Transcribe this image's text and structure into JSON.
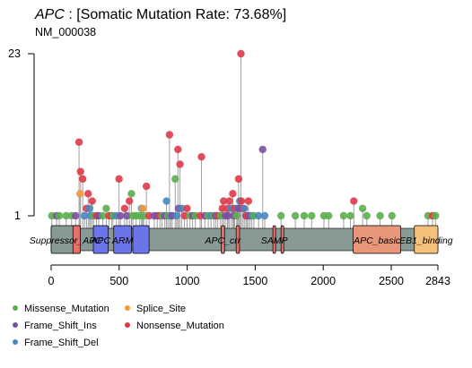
{
  "title": {
    "gene": "APC",
    "rest": " : [Somatic Mutation Rate: 73.68%]"
  },
  "subtitle": "NM_000038",
  "colors": {
    "Missense_Mutation": "#5cae4e",
    "Frame_Shift_Ins": "#7b4fa3",
    "Frame_Shift_Del": "#4a86c0",
    "Splice_Site": "#f39a3a",
    "Nonsense_Mutation": "#df3a4a",
    "backbone": "#889a96",
    "stem": "#a0a0a0"
  },
  "legend": [
    {
      "label": "Missense_Mutation",
      "type": "Missense_Mutation"
    },
    {
      "label": "Splice_Site",
      "type": "Splice_Site"
    },
    {
      "label": "Frame_Shift_Ins",
      "type": "Frame_Shift_Ins"
    },
    {
      "label": "Nonsense_Mutation",
      "type": "Nonsense_Mutation"
    },
    {
      "label": "Frame_Shift_Del",
      "type": "Frame_Shift_Del"
    }
  ],
  "chart_data": {
    "type": "lollipop",
    "protein_length": 2843,
    "xlim": [
      0,
      2843
    ],
    "x_ticks": [
      "0",
      "500",
      "1000",
      "1500",
      "2000",
      "2500",
      "2843"
    ],
    "y_ticks": [
      "1",
      "23"
    ],
    "ylim": [
      1,
      23
    ],
    "domains": [
      {
        "name": "Suppressor_APC",
        "start": 0,
        "end": 215,
        "color": "#889a96"
      },
      {
        "name": "",
        "start": 160,
        "end": 215,
        "color": "#e8706a"
      },
      {
        "name": "APC",
        "start": 310,
        "end": 420,
        "color": "#6b74e8"
      },
      {
        "name": "ARM",
        "start": 460,
        "end": 590,
        "color": "#6b74e8"
      },
      {
        "name": "",
        "start": 600,
        "end": 720,
        "color": "#6b74e8"
      },
      {
        "name": "APC_crr",
        "start": 1250,
        "end": 1275,
        "color": "#e8706a"
      },
      {
        "name": "",
        "start": 1360,
        "end": 1385,
        "color": "#e8706a"
      },
      {
        "name": "SAMP",
        "start": 1630,
        "end": 1650,
        "color": "#e8706a"
      },
      {
        "name": "",
        "start": 1690,
        "end": 1710,
        "color": "#e8706a"
      },
      {
        "name": "APC_basic",
        "start": 2220,
        "end": 2570,
        "color": "#e8967a"
      },
      {
        "name": "EB1_binding",
        "start": 2670,
        "end": 2843,
        "color": "#f5c07a"
      }
    ],
    "mutations": [
      {
        "pos": 5,
        "count": 1,
        "type": "Missense_Mutation"
      },
      {
        "pos": 40,
        "count": 1,
        "type": "Frame_Shift_Ins"
      },
      {
        "pos": 60,
        "count": 1,
        "type": "Missense_Mutation"
      },
      {
        "pos": 110,
        "count": 1,
        "type": "Missense_Mutation"
      },
      {
        "pos": 150,
        "count": 1,
        "type": "Missense_Mutation"
      },
      {
        "pos": 180,
        "count": 1,
        "type": "Frame_Shift_Ins"
      },
      {
        "pos": 205,
        "count": 11,
        "type": "Nonsense_Mutation"
      },
      {
        "pos": 212,
        "count": 4,
        "type": "Splice_Site"
      },
      {
        "pos": 216,
        "count": 7,
        "type": "Nonsense_Mutation"
      },
      {
        "pos": 232,
        "count": 6,
        "type": "Nonsense_Mutation"
      },
      {
        "pos": 245,
        "count": 1,
        "type": "Frame_Shift_Del"
      },
      {
        "pos": 260,
        "count": 2,
        "type": "Nonsense_Mutation"
      },
      {
        "pos": 272,
        "count": 4,
        "type": "Nonsense_Mutation"
      },
      {
        "pos": 283,
        "count": 2,
        "type": "Frame_Shift_Del"
      },
      {
        "pos": 290,
        "count": 1,
        "type": "Frame_Shift_Del"
      },
      {
        "pos": 302,
        "count": 3,
        "type": "Nonsense_Mutation"
      },
      {
        "pos": 312,
        "count": 1,
        "type": "Missense_Mutation"
      },
      {
        "pos": 333,
        "count": 1,
        "type": "Nonsense_Mutation"
      },
      {
        "pos": 350,
        "count": 1,
        "type": "Frame_Shift_Ins"
      },
      {
        "pos": 380,
        "count": 1,
        "type": "Missense_Mutation"
      },
      {
        "pos": 405,
        "count": 2,
        "type": "Missense_Mutation"
      },
      {
        "pos": 425,
        "count": 1,
        "type": "Nonsense_Mutation"
      },
      {
        "pos": 445,
        "count": 1,
        "type": "Nonsense_Mutation"
      },
      {
        "pos": 455,
        "count": 1,
        "type": "Missense_Mutation"
      },
      {
        "pos": 480,
        "count": 1,
        "type": "Frame_Shift_Del"
      },
      {
        "pos": 499,
        "count": 6,
        "type": "Nonsense_Mutation"
      },
      {
        "pos": 510,
        "count": 1,
        "type": "Frame_Shift_Ins"
      },
      {
        "pos": 540,
        "count": 2,
        "type": "Nonsense_Mutation"
      },
      {
        "pos": 557,
        "count": 1,
        "type": "Frame_Shift_Ins"
      },
      {
        "pos": 575,
        "count": 3,
        "type": "Nonsense_Mutation"
      },
      {
        "pos": 590,
        "count": 4,
        "type": "Missense_Mutation"
      },
      {
        "pos": 600,
        "count": 1,
        "type": "Missense_Mutation"
      },
      {
        "pos": 625,
        "count": 1,
        "type": "Missense_Mutation"
      },
      {
        "pos": 652,
        "count": 1,
        "type": "Missense_Mutation"
      },
      {
        "pos": 665,
        "count": 2,
        "type": "Frame_Shift_Del"
      },
      {
        "pos": 673,
        "count": 2,
        "type": "Splice_Site"
      },
      {
        "pos": 680,
        "count": 1,
        "type": "Missense_Mutation"
      },
      {
        "pos": 700,
        "count": 5,
        "type": "Nonsense_Mutation"
      },
      {
        "pos": 720,
        "count": 1,
        "type": "Nonsense_Mutation"
      },
      {
        "pos": 758,
        "count": 1,
        "type": "Frame_Shift_Ins"
      },
      {
        "pos": 780,
        "count": 1,
        "type": "Frame_Shift_Ins"
      },
      {
        "pos": 800,
        "count": 1,
        "type": "Nonsense_Mutation"
      },
      {
        "pos": 815,
        "count": 1,
        "type": "Missense_Mutation"
      },
      {
        "pos": 836,
        "count": 1,
        "type": "Frame_Shift_Ins"
      },
      {
        "pos": 848,
        "count": 3,
        "type": "Frame_Shift_Del"
      },
      {
        "pos": 858,
        "count": 1,
        "type": "Missense_Mutation"
      },
      {
        "pos": 870,
        "count": 12,
        "type": "Nonsense_Mutation"
      },
      {
        "pos": 879,
        "count": 1,
        "type": "Frame_Shift_Del"
      },
      {
        "pos": 890,
        "count": 1,
        "type": "Frame_Shift_Ins"
      },
      {
        "pos": 912,
        "count": 6,
        "type": "Missense_Mutation"
      },
      {
        "pos": 922,
        "count": 1,
        "type": "Frame_Shift_Del"
      },
      {
        "pos": 932,
        "count": 10,
        "type": "Nonsense_Mutation"
      },
      {
        "pos": 936,
        "count": 2,
        "type": "Frame_Shift_Ins"
      },
      {
        "pos": 947,
        "count": 8,
        "type": "Nonsense_Mutation"
      },
      {
        "pos": 960,
        "count": 2,
        "type": "Frame_Shift_Del"
      },
      {
        "pos": 980,
        "count": 1,
        "type": "Nonsense_Mutation"
      },
      {
        "pos": 999,
        "count": 2,
        "type": "Nonsense_Mutation"
      },
      {
        "pos": 1021,
        "count": 1,
        "type": "Missense_Mutation"
      },
      {
        "pos": 1040,
        "count": 1,
        "type": "Frame_Shift_Ins"
      },
      {
        "pos": 1060,
        "count": 1,
        "type": "Missense_Mutation"
      },
      {
        "pos": 1095,
        "count": 1,
        "type": "Nonsense_Mutation"
      },
      {
        "pos": 1105,
        "count": 9,
        "type": "Nonsense_Mutation"
      },
      {
        "pos": 1130,
        "count": 1,
        "type": "Frame_Shift_Ins"
      },
      {
        "pos": 1155,
        "count": 1,
        "type": "Missense_Mutation"
      },
      {
        "pos": 1175,
        "count": 1,
        "type": "Frame_Shift_Del"
      },
      {
        "pos": 1196,
        "count": 1,
        "type": "Missense_Mutation"
      },
      {
        "pos": 1210,
        "count": 1,
        "type": "Frame_Shift_Ins"
      },
      {
        "pos": 1225,
        "count": 1,
        "type": "Nonsense_Mutation"
      },
      {
        "pos": 1245,
        "count": 1,
        "type": "Missense_Mutation"
      },
      {
        "pos": 1258,
        "count": 2,
        "type": "Nonsense_Mutation"
      },
      {
        "pos": 1268,
        "count": 3,
        "type": "Nonsense_Mutation"
      },
      {
        "pos": 1280,
        "count": 1,
        "type": "Frame_Shift_Ins"
      },
      {
        "pos": 1294,
        "count": 2,
        "type": "Nonsense_Mutation"
      },
      {
        "pos": 1300,
        "count": 1,
        "type": "Frame_Shift_Ins"
      },
      {
        "pos": 1310,
        "count": 3,
        "type": "Nonsense_Mutation"
      },
      {
        "pos": 1324,
        "count": 2,
        "type": "Frame_Shift_Del"
      },
      {
        "pos": 1335,
        "count": 4,
        "type": "Nonsense_Mutation"
      },
      {
        "pos": 1342,
        "count": 1,
        "type": "Frame_Shift_Ins"
      },
      {
        "pos": 1349,
        "count": 2,
        "type": "Nonsense_Mutation"
      },
      {
        "pos": 1364,
        "count": 1,
        "type": "Missense_Mutation"
      },
      {
        "pos": 1370,
        "count": 2,
        "type": "Frame_Shift_Del"
      },
      {
        "pos": 1378,
        "count": 6,
        "type": "Nonsense_Mutation"
      },
      {
        "pos": 1380,
        "count": 2,
        "type": "Frame_Shift_Ins"
      },
      {
        "pos": 1386,
        "count": 3,
        "type": "Frame_Shift_Del"
      },
      {
        "pos": 1395,
        "count": 23,
        "type": "Nonsense_Mutation"
      },
      {
        "pos": 1398,
        "count": 3,
        "type": "Nonsense_Mutation"
      },
      {
        "pos": 1410,
        "count": 2,
        "type": "Nonsense_Mutation"
      },
      {
        "pos": 1420,
        "count": 2,
        "type": "Frame_Shift_Del"
      },
      {
        "pos": 1432,
        "count": 1,
        "type": "Frame_Shift_Ins"
      },
      {
        "pos": 1440,
        "count": 1,
        "type": "Nonsense_Mutation"
      },
      {
        "pos": 1450,
        "count": 3,
        "type": "Nonsense_Mutation"
      },
      {
        "pos": 1462,
        "count": 1,
        "type": "Frame_Shift_Ins"
      },
      {
        "pos": 1475,
        "count": 1,
        "type": "Frame_Shift_Del"
      },
      {
        "pos": 1490,
        "count": 1,
        "type": "Missense_Mutation"
      },
      {
        "pos": 1525,
        "count": 1,
        "type": "Frame_Shift_Del"
      },
      {
        "pos": 1555,
        "count": 10,
        "type": "Frame_Shift_Ins"
      },
      {
        "pos": 1570,
        "count": 1,
        "type": "Frame_Shift_Del"
      },
      {
        "pos": 1690,
        "count": 1,
        "type": "Missense_Mutation"
      },
      {
        "pos": 1795,
        "count": 1,
        "type": "Missense_Mutation"
      },
      {
        "pos": 1860,
        "count": 1,
        "type": "Missense_Mutation"
      },
      {
        "pos": 1915,
        "count": 1,
        "type": "Missense_Mutation"
      },
      {
        "pos": 2005,
        "count": 1,
        "type": "Missense_Mutation"
      },
      {
        "pos": 2040,
        "count": 1,
        "type": "Missense_Mutation"
      },
      {
        "pos": 2150,
        "count": 1,
        "type": "Missense_Mutation"
      },
      {
        "pos": 2200,
        "count": 1,
        "type": "Missense_Mutation"
      },
      {
        "pos": 2225,
        "count": 3,
        "type": "Nonsense_Mutation"
      },
      {
        "pos": 2290,
        "count": 2,
        "type": "Missense_Mutation"
      },
      {
        "pos": 2320,
        "count": 1,
        "type": "Missense_Mutation"
      },
      {
        "pos": 2418,
        "count": 1,
        "type": "Missense_Mutation"
      },
      {
        "pos": 2505,
        "count": 1,
        "type": "Missense_Mutation"
      },
      {
        "pos": 2770,
        "count": 1,
        "type": "Missense_Mutation"
      },
      {
        "pos": 2803,
        "count": 1,
        "type": "Nonsense_Mutation"
      },
      {
        "pos": 2825,
        "count": 1,
        "type": "Missense_Mutation"
      }
    ]
  }
}
